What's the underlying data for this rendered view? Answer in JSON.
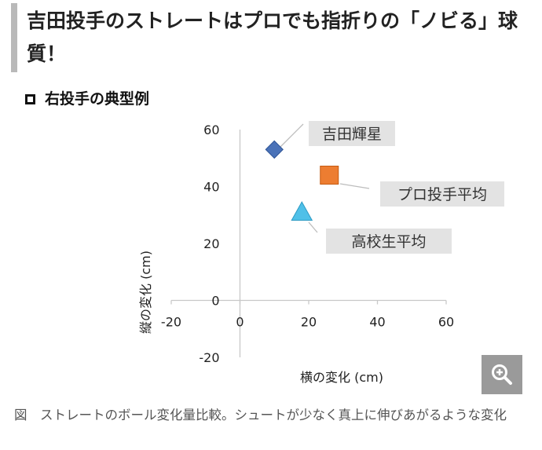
{
  "article": {
    "heading": "吉田投手のストレートはプロでも指折りの「ノビる」球質！"
  },
  "section": {
    "title": "右投手の典型例"
  },
  "chart_data": {
    "type": "scatter",
    "xlabel": "横の変化 (cm)",
    "ylabel": "縦の変化 (cm)",
    "xlim": [
      -20,
      60
    ],
    "ylim": [
      -20,
      60
    ],
    "xticks": [
      "-20",
      "0",
      "20",
      "40",
      "60"
    ],
    "yticks": [
      "60",
      "40",
      "20",
      "0",
      "-20"
    ],
    "grid": false,
    "series": [
      {
        "name": "吉田輝星",
        "x": 10,
        "y": 53,
        "marker": "diamond",
        "color": "#4a72b8"
      },
      {
        "name": "プロ投手平均",
        "x": 26,
        "y": 44,
        "marker": "square",
        "color": "#ed7d31"
      },
      {
        "name": "高校生平均",
        "x": 18,
        "y": 31,
        "marker": "triangle",
        "color": "#4fc0e8"
      }
    ],
    "label_box_color": "#e3e3e3"
  },
  "zoom": {
    "icon": "zoom-in-icon"
  },
  "caption": {
    "text": "図　ストレートのボール変化量比較。シュートが少なく真上に伸びあがるような変化"
  }
}
